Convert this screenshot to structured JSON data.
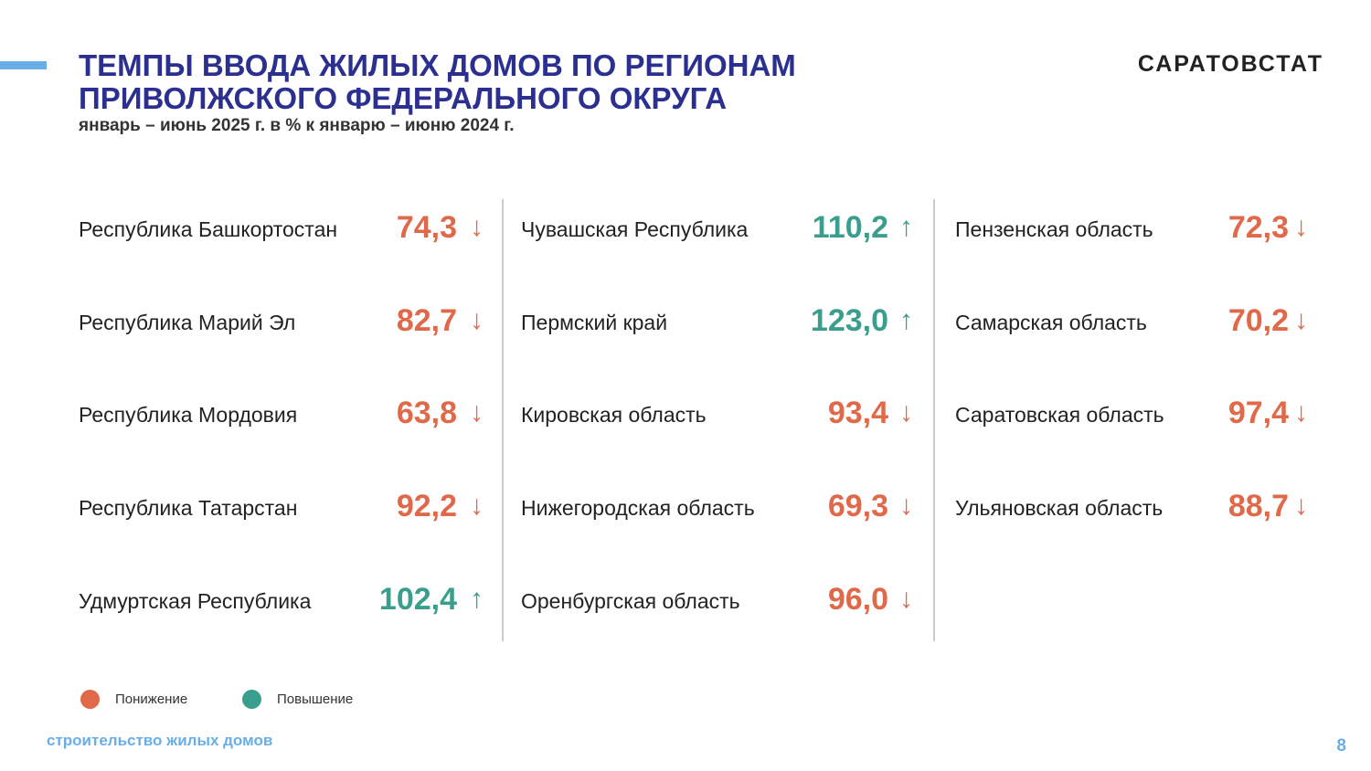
{
  "header": {
    "title_line1": "ТЕМПЫ ВВОДА ЖИЛЫХ ДОМОВ ПО РЕГИОНАМ",
    "title_line2": "ПРИВОЛЖСКОГО ФЕДЕРАЛЬНОГО ОКРУГА",
    "subtitle": "январь – июнь 2025 г.  в % к январю – июню 2024 г.",
    "brand": "САРАТОВСТАТ"
  },
  "columns": [
    [
      {
        "name": "Республика Башкортостан",
        "value": "74,3",
        "arrow": "↓",
        "color": "#e0694a"
      },
      {
        "name": "Республика Марий Эл",
        "value": "82,7",
        "arrow": "↓",
        "color": "#e0694a"
      },
      {
        "name": "Республика Мордовия",
        "value": "63,8",
        "arrow": "↓",
        "color": "#e0694a"
      },
      {
        "name": "Республика Татарстан",
        "value": "92,2",
        "arrow": "↓",
        "color": "#e0694a"
      },
      {
        "name": "Удмуртская Республика",
        "value": "102,4",
        "arrow": "↑",
        "color": "#3a9e8d"
      }
    ],
    [
      {
        "name": "Чувашская Республика",
        "value": "110,2",
        "arrow": "↑",
        "color": "#3a9e8d"
      },
      {
        "name": "Пермский край",
        "value": "123,0",
        "arrow": "↑",
        "color": "#3a9e8d"
      },
      {
        "name": "Кировская область",
        "value": "93,4",
        "arrow": "↓",
        "color": "#e0694a"
      },
      {
        "name": "Нижегородская область",
        "value": "69,3",
        "arrow": "↓",
        "color": "#e0694a"
      },
      {
        "name": "Оренбургская область",
        "value": "96,0",
        "arrow": "↓",
        "color": "#e0694a"
      }
    ],
    [
      {
        "name": "Пензенская область",
        "value": "72,3",
        "arrow": "↓",
        "color": "#e0694a"
      },
      {
        "name": "Самарская область",
        "value": "70,2",
        "arrow": "↓",
        "color": "#e0694a"
      },
      {
        "name": "Саратовская область",
        "value": "97,4",
        "arrow": "↓",
        "color": "#e0694a"
      },
      {
        "name": "Ульяновская область",
        "value": "88,7",
        "arrow": "↓",
        "color": "#e0694a"
      }
    ]
  ],
  "legend": [
    {
      "label": "Понижение",
      "color": "#e0694a"
    },
    {
      "label": "Повышение",
      "color": "#3a9e8d"
    }
  ],
  "footer": {
    "section": "строительство жилых домов",
    "page": "8"
  }
}
